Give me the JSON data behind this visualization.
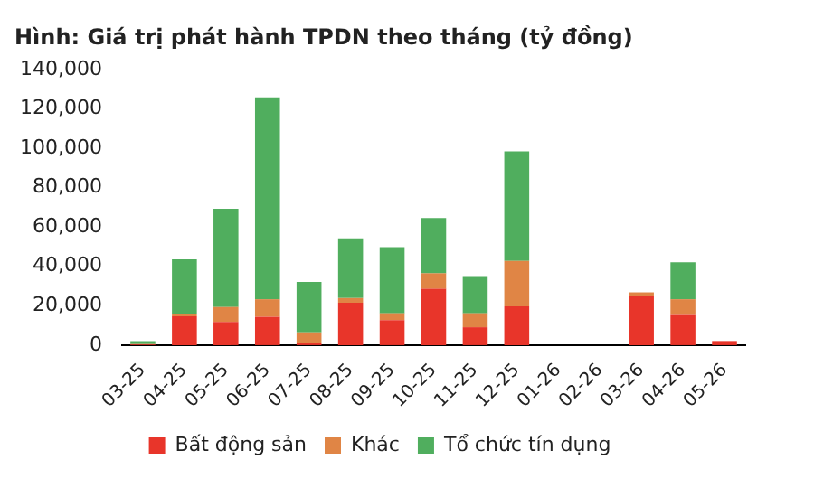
{
  "chart_data": {
    "type": "bar",
    "title": "Hình: Giá trị phát hành TPDN theo tháng (tỷ đồng)",
    "stacked": true,
    "legend": "bottom",
    "grid": false,
    "categories": [
      "03-25",
      "04-25",
      "05-25",
      "06-25",
      "07-25",
      "08-25",
      "09-25",
      "10-25",
      "11-25",
      "12-25",
      "01-26",
      "02-26",
      "03-26",
      "04-26",
      "05-26"
    ],
    "ylim": [
      0,
      140000
    ],
    "yticks": [
      {
        "value": 0,
        "label": "0"
      },
      {
        "value": 20000,
        "label": "20,000"
      },
      {
        "value": 40000,
        "label": "40,000"
      },
      {
        "value": 60000,
        "label": "60,000"
      },
      {
        "value": 80000,
        "label": "80,000"
      },
      {
        "value": 100000,
        "label": "100,000"
      },
      {
        "value": 120000,
        "label": "120,000"
      },
      {
        "value": 140000,
        "label": "140,000"
      }
    ],
    "series": [
      {
        "name": "Bất động sản",
        "color": "#e8352a",
        "values": [
          300,
          14700,
          11800,
          14400,
          1200,
          21500,
          12700,
          28600,
          9100,
          19700,
          0,
          0,
          25000,
          15300,
          2100
        ]
      },
      {
        "name": "Khác",
        "color": "#e08545",
        "values": [
          200,
          1200,
          7600,
          8900,
          5300,
          2400,
          3500,
          7900,
          7100,
          23000,
          0,
          0,
          1800,
          8000,
          0
        ]
      },
      {
        "name": "Tổ chức tín dụng",
        "color": "#50ae5e",
        "values": [
          1500,
          27700,
          49900,
          102500,
          25600,
          30300,
          33600,
          28000,
          18900,
          55700,
          0,
          0,
          0,
          18800,
          0
        ]
      }
    ]
  }
}
